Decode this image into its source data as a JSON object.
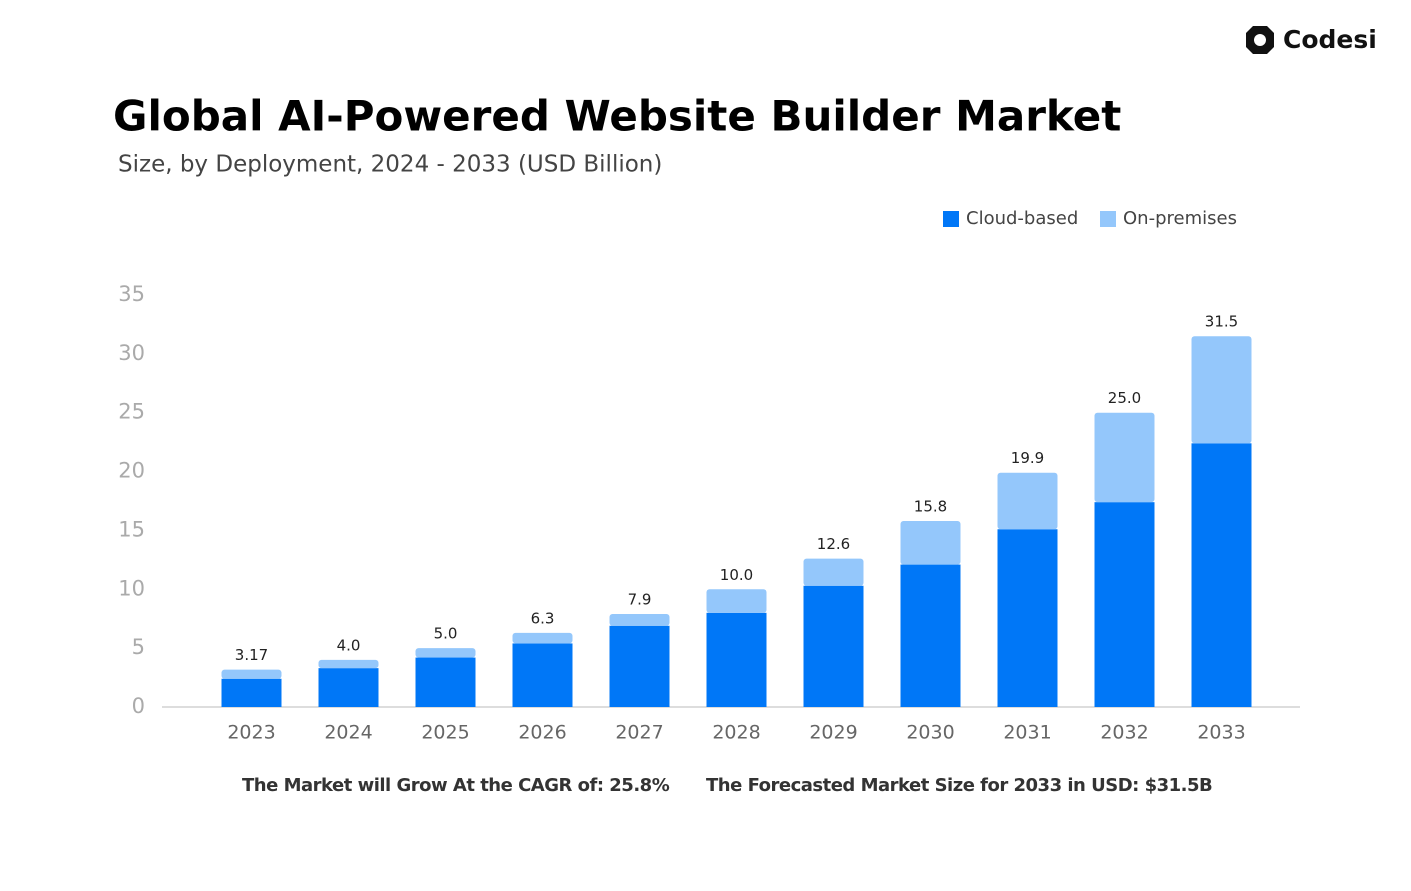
{
  "brand": "Codesi",
  "chart_data": {
    "type": "stacked-bar",
    "title": "Global AI-Powered Website Builder Market",
    "subtitle": "Size, by Deployment, 2024 - 2033 (USD Billion)",
    "categories": [
      "2023",
      "2024",
      "2025",
      "2026",
      "2027",
      "2028",
      "2029",
      "2030",
      "2031",
      "2032",
      "2033"
    ],
    "series": [
      {
        "name": "Cloud-based",
        "color": "#0077f7",
        "values": [
          2.4,
          3.3,
          4.2,
          5.4,
          6.9,
          8.0,
          10.3,
          12.1,
          15.1,
          17.4,
          22.4
        ]
      },
      {
        "name": "On-premises",
        "color": "#94c7fb",
        "values": [
          0.77,
          0.7,
          0.8,
          0.9,
          1.0,
          2.0,
          2.3,
          3.7,
          4.8,
          7.6,
          9.1
        ]
      }
    ],
    "totals": [
      3.17,
      4.0,
      5.0,
      6.3,
      7.9,
      10.0,
      12.6,
      15.8,
      19.9,
      25.0,
      31.5
    ],
    "total_labels": [
      "3.17",
      "4.0",
      "5.0",
      "6.3",
      "7.9",
      "10.0",
      "12.6",
      "15.8",
      "19.9",
      "25.0",
      "31.5"
    ],
    "ylim": [
      0,
      35
    ],
    "yticks": [
      0,
      5,
      10,
      15,
      20,
      25,
      30,
      35
    ],
    "grid": false,
    "annotations": [
      "The Market will Grow At the CAGR of: 25.8%",
      "The Forecasted Market Size for 2033 in USD: $31.5B"
    ]
  }
}
